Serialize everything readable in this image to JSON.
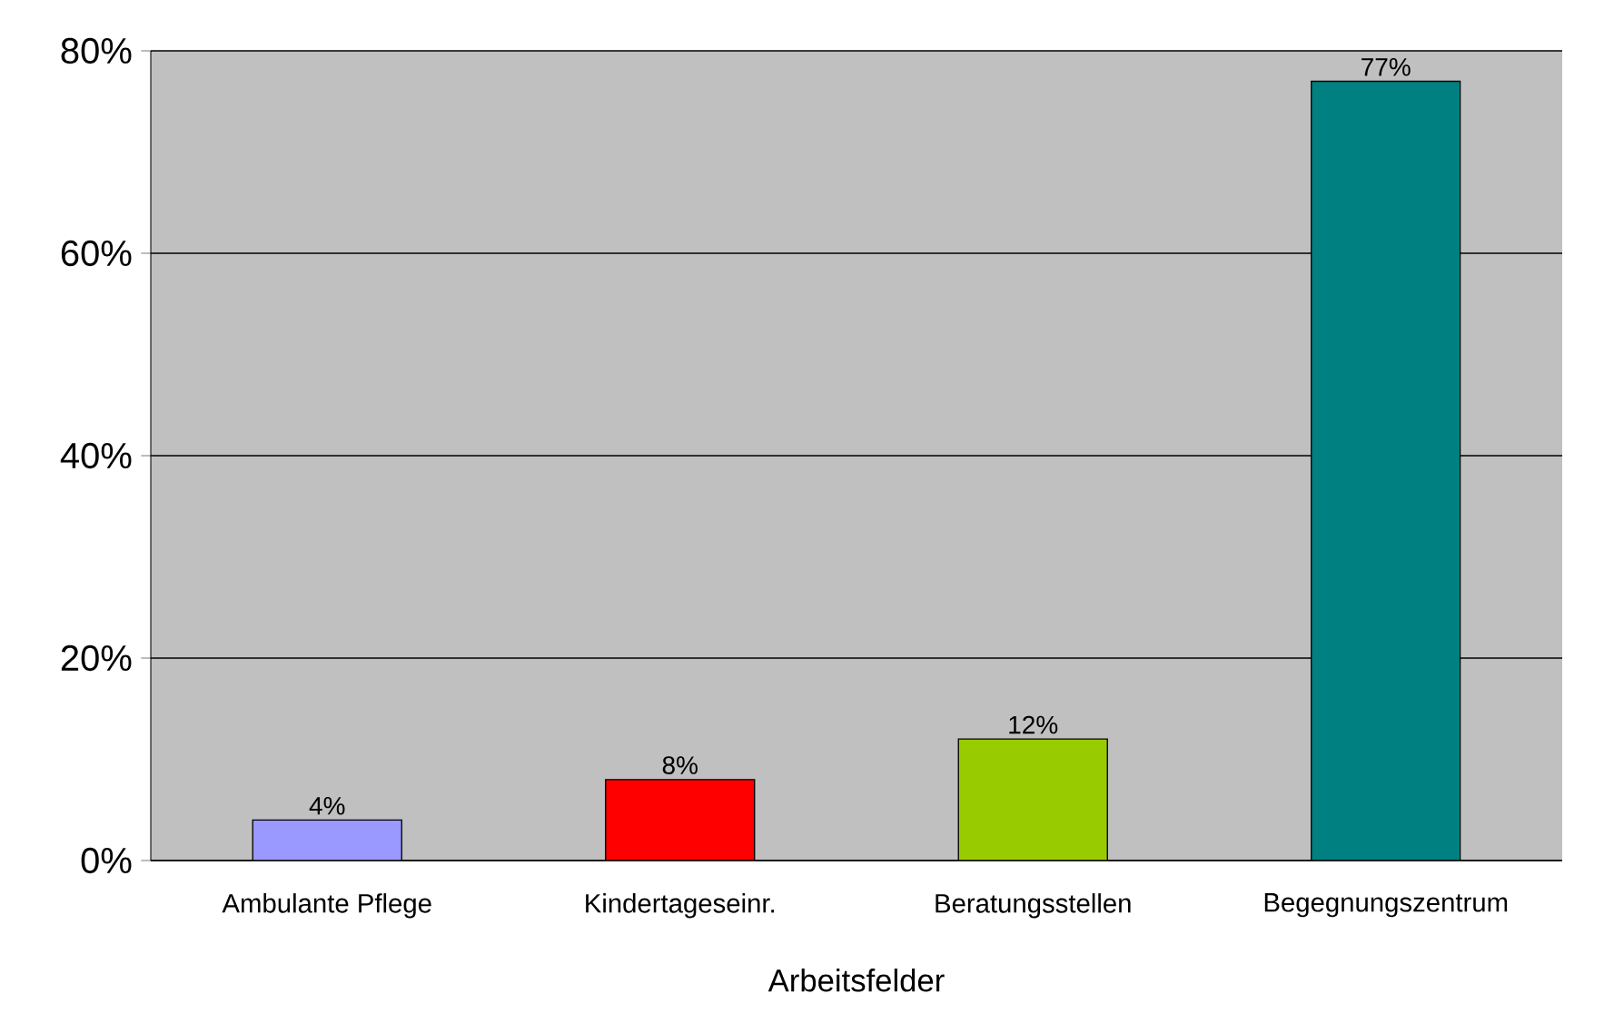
{
  "chart_data": {
    "type": "bar",
    "xlabel": "Arbeitsfelder",
    "categories": [
      "Ambulante Pflege",
      "Kindertageseinr.",
      "Beratungsstellen",
      "Begegnungszentrum"
    ],
    "values": [
      4,
      8,
      12,
      77
    ],
    "colors": [
      "#9999ff",
      "#ff0000",
      "#99cc00",
      "#008080"
    ],
    "value_labels": [
      "4%",
      "8%",
      "12%",
      "77%"
    ],
    "ylim": [
      0,
      80
    ],
    "yticks": [
      {
        "value": 0,
        "label": "0%"
      },
      {
        "value": 20,
        "label": "20%"
      },
      {
        "value": 40,
        "label": "40%"
      },
      {
        "value": 60,
        "label": "60%"
      },
      {
        "value": 80,
        "label": "80%"
      }
    ],
    "grid": "y"
  }
}
